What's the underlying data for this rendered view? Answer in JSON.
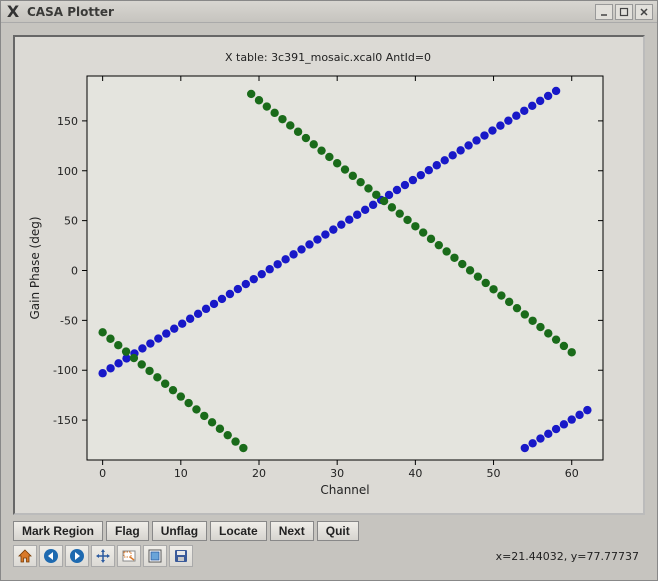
{
  "window": {
    "title": "CASA Plotter",
    "icon_label": "X"
  },
  "chart": {
    "type": "scatter",
    "title": "X table: 3c391_mosaic.xcal0       AntId=0",
    "xlabel": "Channel",
    "ylabel": "Gain Phase (deg)",
    "xlim": [
      -2,
      64
    ],
    "ylim": [
      -190,
      195
    ],
    "xticks": [
      0,
      10,
      20,
      30,
      40,
      50,
      60
    ],
    "yticks": [
      -150,
      -100,
      -50,
      0,
      50,
      100,
      150
    ],
    "background_color": "#e4e4de",
    "axes_color": "#000000",
    "marker_size": 4.2,
    "series": [
      {
        "name": "blue",
        "color": "#1818c8",
        "segments": [
          {
            "x0": 0,
            "y0": -103,
            "x1": 58,
            "y1": 180,
            "n": 58
          },
          {
            "x0": 54,
            "y0": -178,
            "x1": 62,
            "y1": -140,
            "n": 9
          }
        ]
      },
      {
        "name": "green",
        "color": "#1a6b1a",
        "segments": [
          {
            "x0": 0,
            "y0": -62,
            "x1": 18,
            "y1": -178,
            "n": 19
          },
          {
            "x0": 19,
            "y0": 177,
            "x1": 60,
            "y1": -82,
            "n": 42
          }
        ]
      }
    ]
  },
  "buttons": {
    "mark_region": "Mark Region",
    "flag": "Flag",
    "unflag": "Unflag",
    "locate": "Locate",
    "next": "Next",
    "quit": "Quit"
  },
  "toolbar": {
    "home": "home",
    "back": "back",
    "forward": "forward",
    "pan": "pan",
    "zoom": "zoom",
    "subplots": "subplots",
    "save": "save"
  },
  "status": {
    "coords": "x=21.44032, y=77.77737"
  }
}
